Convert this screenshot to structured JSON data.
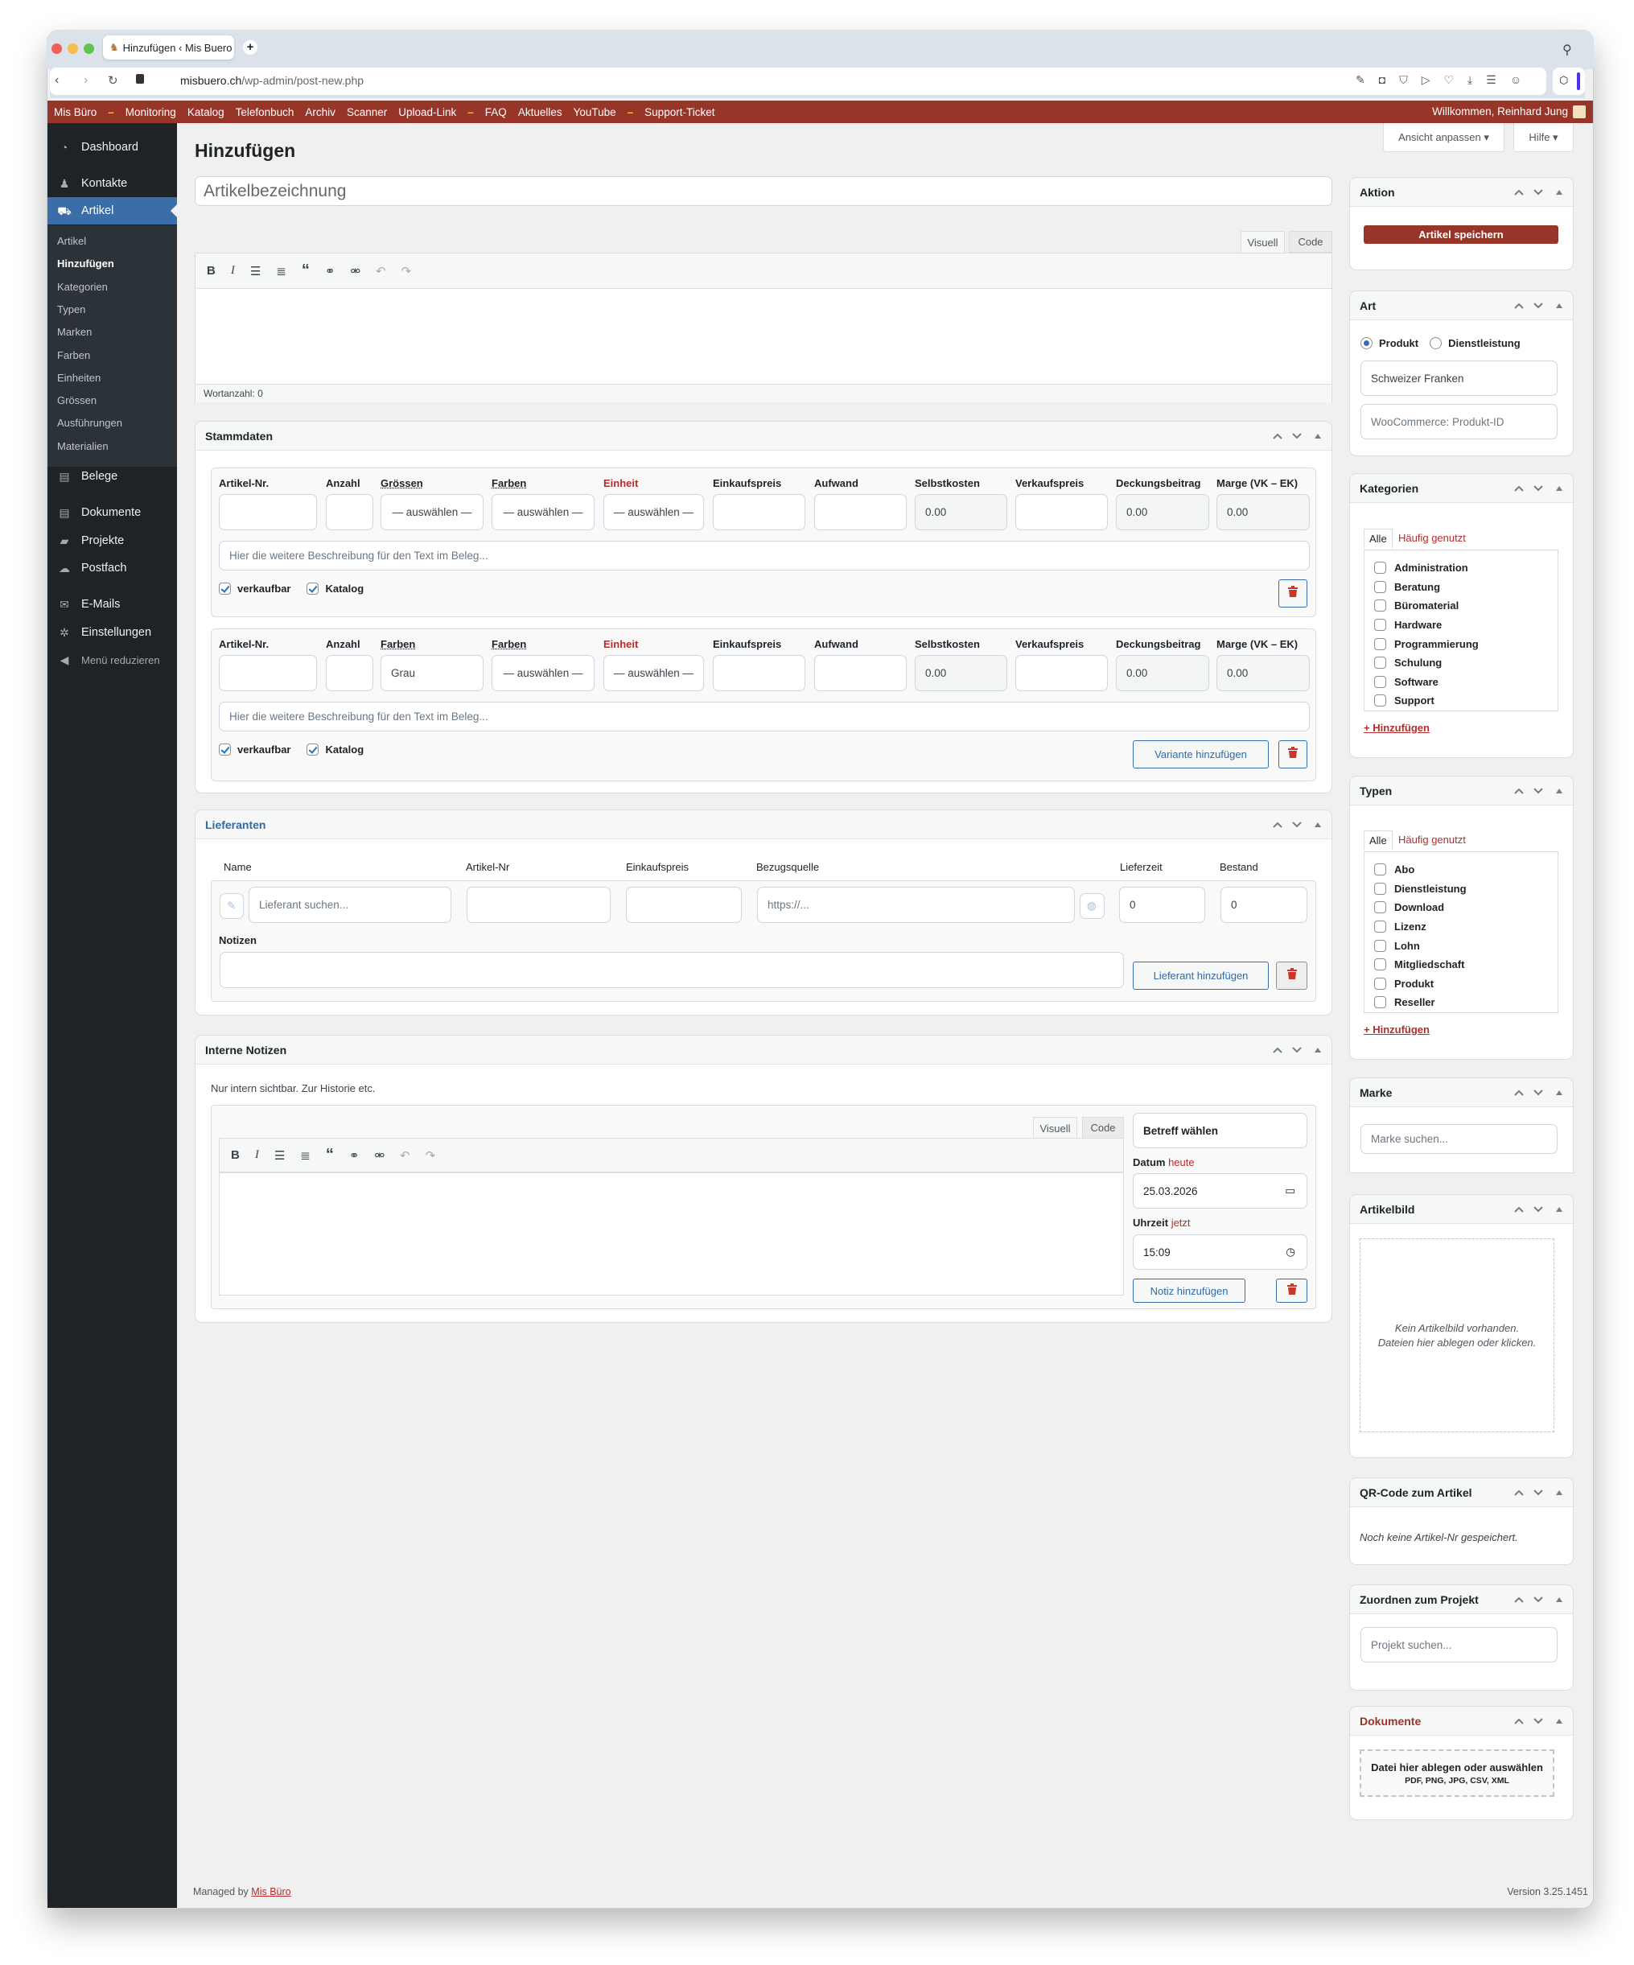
{
  "browser": {
    "tab_title": "Hinzufügen ‹ Mis Buero",
    "url_domain": "misbuero.ch",
    "url_path": "/wp-admin/post-new.php"
  },
  "adminbar": {
    "items": [
      "Mis Büro",
      "–",
      "Monitoring",
      "Katalog",
      "Telefonbuch",
      "Archiv",
      "Scanner",
      "Upload-Link",
      "–",
      "FAQ",
      "Aktuelles",
      "YouTube",
      "–",
      "Support-Ticket"
    ],
    "welcome": "Willkommen, Reinhard Jung",
    "color": "#973529"
  },
  "screen_options": {
    "ansicht": "Ansicht anpassen ▾",
    "hilfe": "Hilfe ▾"
  },
  "sidebar": {
    "top": [
      {
        "label": "Dashboard",
        "icon": "dashboard-icon"
      },
      {
        "label": "Kontakte",
        "icon": "users-icon"
      },
      {
        "label": "Artikel",
        "icon": "cart-icon",
        "active": true
      }
    ],
    "submenu": [
      "Artikel",
      "Hinzufügen",
      "Kategorien",
      "Typen",
      "Marken",
      "Farben",
      "Einheiten",
      "Grössen",
      "Ausführungen",
      "Materialien"
    ],
    "current_sub": "Hinzufügen",
    "bottom": [
      {
        "label": "Belege",
        "icon": "document-icon"
      },
      {
        "label": "Dokumente",
        "icon": "document-icon"
      },
      {
        "label": "Projekte",
        "icon": "folder-icon"
      },
      {
        "label": "Postfach",
        "icon": "cloud-icon"
      },
      {
        "label": "E-Mails",
        "icon": "mail-icon"
      },
      {
        "label": "Einstellungen",
        "icon": "gear-icon"
      },
      {
        "label": "Menü reduzieren",
        "icon": "collapse-icon"
      }
    ],
    "active_color": "#3b6ea8"
  },
  "page": {
    "title": "Hinzufügen",
    "title_placeholder": "Artikelbezeichnung"
  },
  "editor": {
    "tab_visual": "Visuell",
    "tab_code": "Code",
    "wordcount": "Wortanzahl: 0"
  },
  "stammdaten": {
    "title": "Stammdaten",
    "variants": [
      {
        "labels": [
          "Artikel-Nr.",
          "Anzahl",
          "Grössen",
          "Farben",
          "Einheit",
          "Einkaufspreis",
          "Aufwand",
          "Selbstkosten",
          "Verkaufspreis",
          "Deckungsbeitrag",
          "Marge (VK – EK)"
        ],
        "values": [
          "",
          "",
          "— auswählen —",
          "— auswählen —",
          "— auswählen —",
          "",
          "",
          "0.00",
          "",
          "0.00",
          "0.00"
        ],
        "description_placeholder": "Hier die weitere Beschreibung für den Text im Beleg...",
        "verkaufbar": {
          "label": "verkaufbar",
          "checked": true
        },
        "katalog": {
          "label": "Katalog",
          "checked": true
        }
      },
      {
        "labels": [
          "Artikel-Nr.",
          "Anzahl",
          "Farben",
          "Farben",
          "Einheit",
          "Einkaufspreis",
          "Aufwand",
          "Selbstkosten",
          "Verkaufspreis",
          "Deckungsbeitrag",
          "Marge (VK – EK)"
        ],
        "values": [
          "",
          "",
          "Grau",
          "— auswählen —",
          "— auswählen —",
          "",
          "",
          "0.00",
          "",
          "0.00",
          "0.00"
        ],
        "description_placeholder": "Hier die weitere Beschreibung für den Text im Beleg...",
        "verkaufbar": {
          "label": "verkaufbar",
          "checked": true
        },
        "katalog": {
          "label": "Katalog",
          "checked": true
        }
      }
    ],
    "add_variant": "Variante hinzufügen"
  },
  "lieferanten": {
    "title": "Lieferanten",
    "columns": [
      "Name",
      "Artikel-Nr",
      "Einkaufspreis",
      "Bezugsquelle",
      "Lieferzeit",
      "Bestand"
    ],
    "name_placeholder": "Lieferant suchen...",
    "url_placeholder": "https://...",
    "lieferzeit": "0",
    "bestand": "0",
    "notizen_label": "Notizen",
    "add_button": "Lieferant hinzufügen"
  },
  "notizen": {
    "title": "Interne Notizen",
    "hint": "Nur intern sichtbar. Zur Historie etc.",
    "tab_visual": "Visuell",
    "tab_code": "Code",
    "betreff": "Betreff wählen",
    "datum_label": "Datum",
    "datum_link": "heute",
    "datum": "25.03.2026",
    "uhrzeit_label": "Uhrzeit",
    "uhrzeit_link": "jetzt",
    "uhrzeit": "15:09",
    "add_button": "Notiz hinzufügen"
  },
  "right": {
    "aktion": {
      "title": "Aktion",
      "save": "Artikel speichern"
    },
    "art": {
      "title": "Art",
      "options": [
        "Produkt",
        "Dienstleistung"
      ],
      "selected": "Produkt",
      "currency": "Schweizer Franken",
      "woo_placeholder": "WooCommerce: Produkt-ID"
    },
    "kategorien": {
      "title": "Kategorien",
      "tab_all": "Alle",
      "tab_popular": "Häufig genutzt",
      "items": [
        "Administration",
        "Beratung",
        "Büromaterial",
        "Hardware",
        "Programmierung",
        "Schulung",
        "Software",
        "Support"
      ],
      "add": "+ Hinzufügen"
    },
    "typen": {
      "title": "Typen",
      "tab_all": "Alle",
      "tab_popular": "Häufig genutzt",
      "items": [
        "Abo",
        "Dienstleistung",
        "Download",
        "Lizenz",
        "Lohn",
        "Mitgliedschaft",
        "Produkt",
        "Reseller"
      ],
      "add": "+ Hinzufügen"
    },
    "marke": {
      "title": "Marke",
      "placeholder": "Marke suchen..."
    },
    "artikelbild": {
      "title": "Artikelbild",
      "line1": "Kein Artikelbild vorhanden.",
      "line2": "Dateien hier ablegen oder klicken."
    },
    "qr": {
      "title": "QR-Code zum Artikel",
      "text": "Noch keine Artikel-Nr gespeichert."
    },
    "projekt": {
      "title": "Zuordnen zum Projekt",
      "placeholder": "Projekt suchen..."
    },
    "dokumente": {
      "title": "Dokumente",
      "drop": "Datei hier ablegen oder auswählen",
      "types": "PDF, PNG, JPG, CSV, XML"
    }
  },
  "footer": {
    "managed_by": "Managed by",
    "link": "Mis Büro",
    "version": "Version 3.25.1451"
  }
}
